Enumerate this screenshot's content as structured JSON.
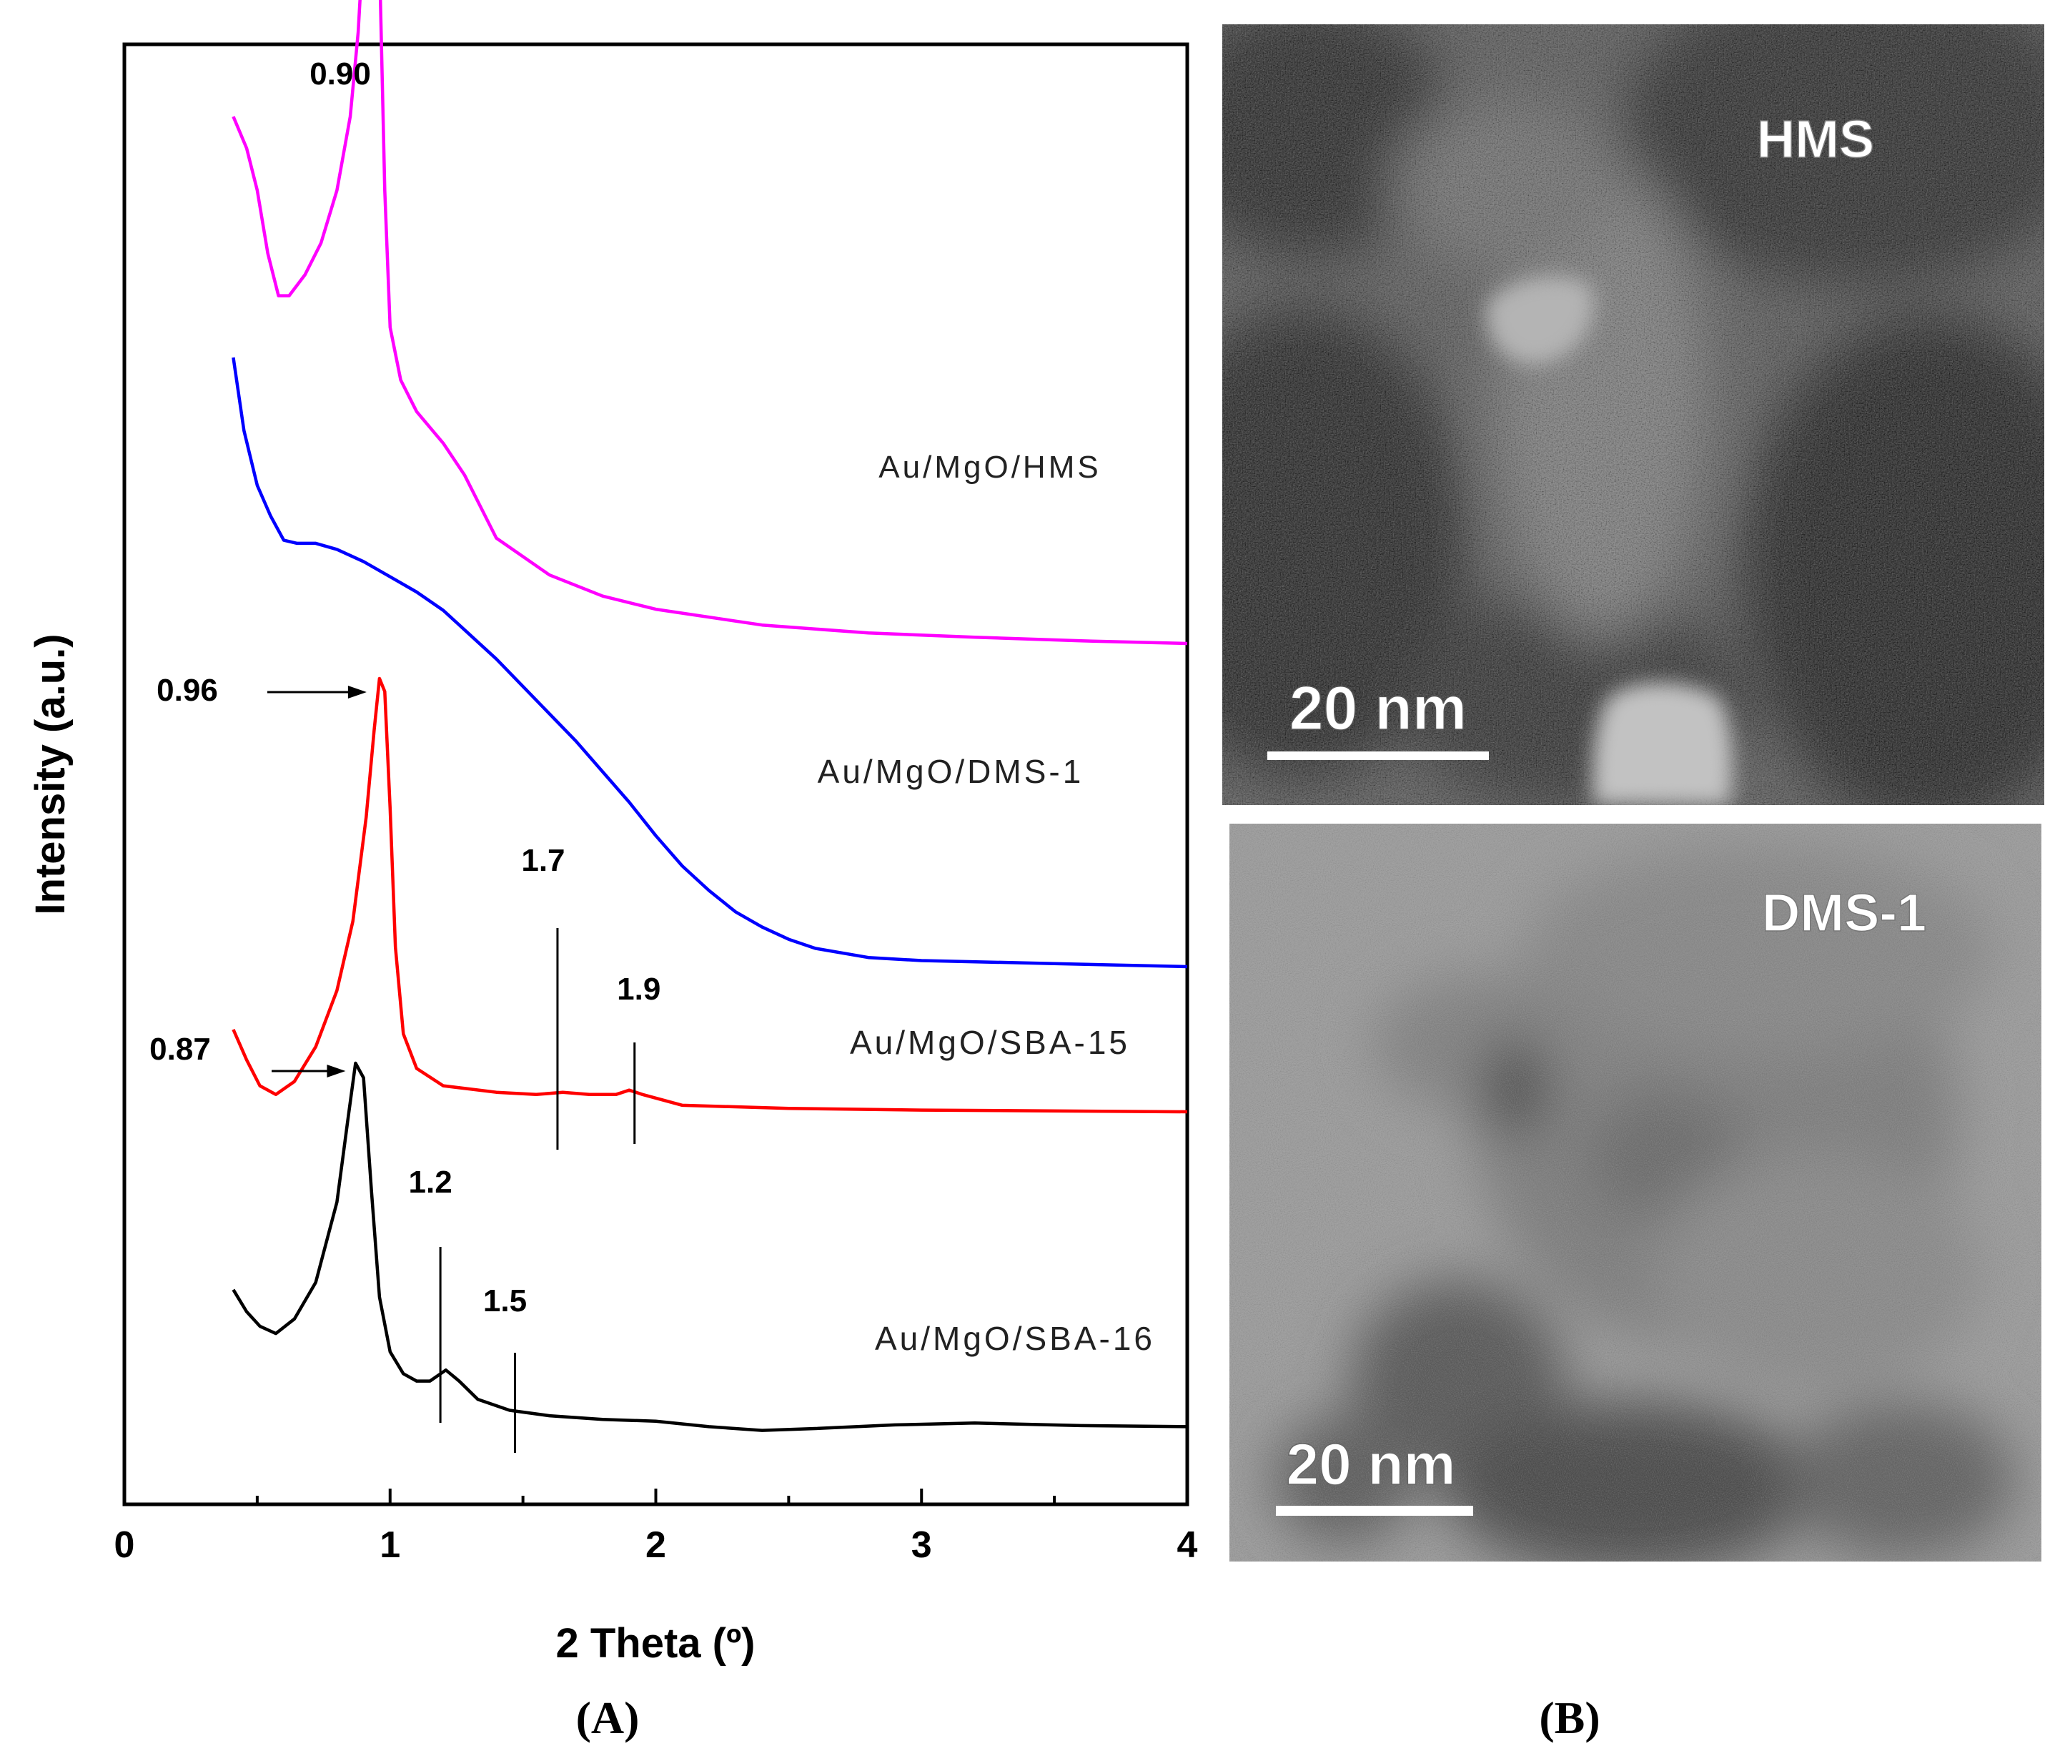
{
  "panel_labels": {
    "a": "A",
    "b": "B"
  },
  "chart_data": {
    "type": "line",
    "xlabel": "2 Theta (º)",
    "ylabel": "Intensity (a.u.)",
    "xlim": [
      0,
      4
    ],
    "x_ticks": [
      "0",
      "1",
      "2",
      "3",
      "4"
    ],
    "grid": false,
    "y_tick_labels": false,
    "series": [
      {
        "name": "Au/MgO/HMS",
        "color": "#ff00ff",
        "points": [
          [
            0.41,
            1.0
          ],
          [
            0.46,
            0.94
          ],
          [
            0.5,
            0.86
          ],
          [
            0.54,
            0.74
          ],
          [
            0.58,
            0.66
          ],
          [
            0.62,
            0.66
          ],
          [
            0.68,
            0.7
          ],
          [
            0.74,
            0.76
          ],
          [
            0.8,
            0.86
          ],
          [
            0.85,
            1.0
          ],
          [
            0.88,
            1.16
          ],
          [
            0.9,
            1.34
          ],
          [
            0.92,
            1.56
          ],
          [
            0.94,
            1.56
          ],
          [
            0.96,
            1.3
          ],
          [
            0.98,
            0.86
          ],
          [
            1.0,
            0.6
          ],
          [
            1.04,
            0.5
          ],
          [
            1.1,
            0.44
          ],
          [
            1.2,
            0.38
          ],
          [
            1.28,
            0.32
          ],
          [
            1.4,
            0.2
          ],
          [
            1.6,
            0.13
          ],
          [
            1.8,
            0.09
          ],
          [
            2.0,
            0.065
          ],
          [
            2.4,
            0.035
          ],
          [
            2.8,
            0.02
          ],
          [
            3.2,
            0.012
          ],
          [
            3.6,
            0.005
          ],
          [
            4.0,
            0.0
          ]
        ],
        "annotations": [
          {
            "label": "0.90",
            "x": 0.92
          }
        ]
      },
      {
        "name": "Au/MgO/DMS-1",
        "color": "#0000ff",
        "points": [
          [
            0.41,
            1.0
          ],
          [
            0.45,
            0.88
          ],
          [
            0.5,
            0.79
          ],
          [
            0.55,
            0.74
          ],
          [
            0.6,
            0.7
          ],
          [
            0.65,
            0.695
          ],
          [
            0.72,
            0.695
          ],
          [
            0.8,
            0.685
          ],
          [
            0.9,
            0.665
          ],
          [
            1.0,
            0.64
          ],
          [
            1.1,
            0.615
          ],
          [
            1.2,
            0.585
          ],
          [
            1.3,
            0.545
          ],
          [
            1.4,
            0.505
          ],
          [
            1.5,
            0.46
          ],
          [
            1.6,
            0.415
          ],
          [
            1.7,
            0.37
          ],
          [
            1.8,
            0.32
          ],
          [
            1.9,
            0.27
          ],
          [
            2.0,
            0.215
          ],
          [
            2.1,
            0.165
          ],
          [
            2.2,
            0.125
          ],
          [
            2.3,
            0.09
          ],
          [
            2.4,
            0.065
          ],
          [
            2.5,
            0.045
          ],
          [
            2.6,
            0.03
          ],
          [
            2.8,
            0.015
          ],
          [
            3.0,
            0.01
          ],
          [
            3.5,
            0.005
          ],
          [
            4.0,
            0.0
          ]
        ]
      },
      {
        "name": "Au/MgO/SBA-15",
        "color": "#ff0000",
        "points": [
          [
            0.41,
            0.19
          ],
          [
            0.46,
            0.12
          ],
          [
            0.51,
            0.06
          ],
          [
            0.57,
            0.04
          ],
          [
            0.64,
            0.07
          ],
          [
            0.72,
            0.15
          ],
          [
            0.8,
            0.28
          ],
          [
            0.86,
            0.44
          ],
          [
            0.91,
            0.68
          ],
          [
            0.94,
            0.88
          ],
          [
            0.96,
            1.0
          ],
          [
            0.98,
            0.97
          ],
          [
            1.0,
            0.7
          ],
          [
            1.02,
            0.38
          ],
          [
            1.05,
            0.18
          ],
          [
            1.1,
            0.1
          ],
          [
            1.2,
            0.06
          ],
          [
            1.4,
            0.045
          ],
          [
            1.55,
            0.04
          ],
          [
            1.65,
            0.045
          ],
          [
            1.75,
            0.04
          ],
          [
            1.85,
            0.04
          ],
          [
            1.9,
            0.05
          ],
          [
            1.95,
            0.04
          ],
          [
            2.1,
            0.015
          ],
          [
            2.5,
            0.008
          ],
          [
            3.0,
            0.004
          ],
          [
            4.0,
            0.0
          ]
        ],
        "annotations": [
          {
            "label": "0.96",
            "x": 0.96
          },
          {
            "label": "1.7",
            "x": 1.63
          },
          {
            "label": "1.9",
            "x": 1.92
          }
        ]
      },
      {
        "name": "Au/MgO/SBA-16",
        "color": "#000000",
        "points": [
          [
            0.41,
            0.38
          ],
          [
            0.46,
            0.32
          ],
          [
            0.51,
            0.28
          ],
          [
            0.57,
            0.26
          ],
          [
            0.64,
            0.3
          ],
          [
            0.72,
            0.4
          ],
          [
            0.8,
            0.62
          ],
          [
            0.84,
            0.84
          ],
          [
            0.87,
            1.0
          ],
          [
            0.9,
            0.96
          ],
          [
            0.93,
            0.65
          ],
          [
            0.96,
            0.36
          ],
          [
            1.0,
            0.21
          ],
          [
            1.05,
            0.15
          ],
          [
            1.1,
            0.13
          ],
          [
            1.15,
            0.13
          ],
          [
            1.21,
            0.16
          ],
          [
            1.26,
            0.13
          ],
          [
            1.33,
            0.08
          ],
          [
            1.45,
            0.05
          ],
          [
            1.6,
            0.035
          ],
          [
            1.8,
            0.025
          ],
          [
            2.0,
            0.02
          ],
          [
            2.2,
            0.005
          ],
          [
            2.4,
            -0.005
          ],
          [
            2.6,
            0.0
          ],
          [
            2.9,
            0.01
          ],
          [
            3.2,
            0.015
          ],
          [
            3.6,
            0.008
          ],
          [
            4.0,
            0.005
          ]
        ],
        "annotations": [
          {
            "label": "0.87",
            "x": 0.87
          },
          {
            "label": "1.2",
            "x": 1.2
          },
          {
            "label": "1.5",
            "x": 1.47
          }
        ]
      }
    ]
  },
  "tem_images": [
    {
      "label": "HMS",
      "scale_bar": "20 nm"
    },
    {
      "label": "DMS-1",
      "scale_bar": "20 nm"
    }
  ]
}
